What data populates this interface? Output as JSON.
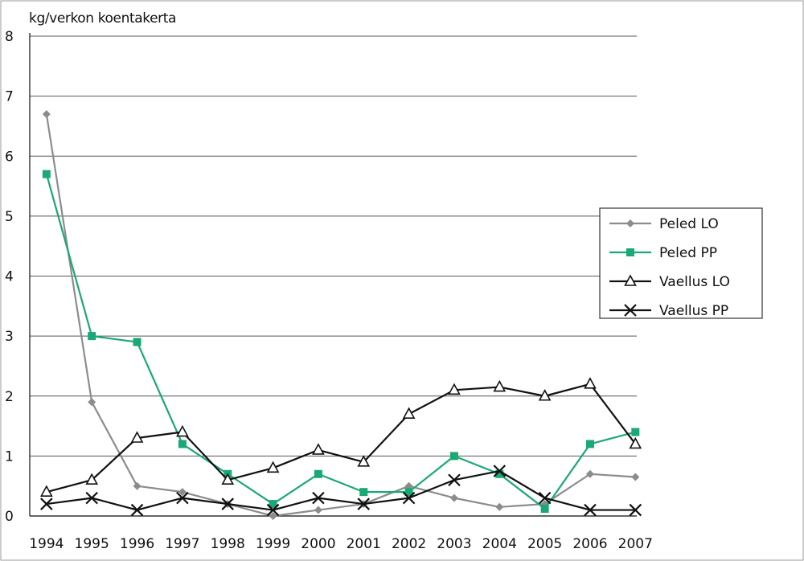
{
  "chart_data": {
    "type": "line",
    "ylabel": "kg/verkon koentakerta",
    "xlabel": "",
    "title": "",
    "categories": [
      "1994",
      "1995",
      "1996",
      "1997",
      "1998",
      "1999",
      "2000",
      "2001",
      "2002",
      "2003",
      "2004",
      "2005",
      "2006",
      "2007"
    ],
    "ylim": [
      0,
      8
    ],
    "yticks": [
      "0",
      "1",
      "2",
      "3",
      "4",
      "5",
      "6",
      "7",
      "8"
    ],
    "grid": true,
    "legend_position": "right",
    "series": [
      {
        "name": "Peled LO",
        "color": "#8c8c8c",
        "marker": "diamond",
        "values": [
          6.7,
          1.9,
          0.5,
          0.4,
          0.2,
          0.0,
          0.1,
          0.2,
          0.5,
          0.3,
          0.15,
          0.2,
          0.7,
          0.65
        ]
      },
      {
        "name": "Peled PP",
        "color": "#1aa874",
        "marker": "square",
        "values": [
          5.7,
          3.0,
          2.9,
          1.2,
          0.7,
          0.2,
          0.7,
          0.4,
          0.4,
          1.0,
          0.7,
          0.12,
          1.2,
          1.4
        ]
      },
      {
        "name": "Vaellus LO",
        "color": "#111111",
        "marker": "triangle",
        "values": [
          0.4,
          0.6,
          1.3,
          1.4,
          0.6,
          0.8,
          1.1,
          0.9,
          1.7,
          2.1,
          2.15,
          2.0,
          2.2,
          1.2
        ]
      },
      {
        "name": "Vaellus PP",
        "color": "#111111",
        "marker": "x",
        "values": [
          0.2,
          0.3,
          0.1,
          0.3,
          0.2,
          0.1,
          0.3,
          0.2,
          0.3,
          0.6,
          0.75,
          0.3,
          0.1,
          0.1
        ]
      }
    ]
  }
}
